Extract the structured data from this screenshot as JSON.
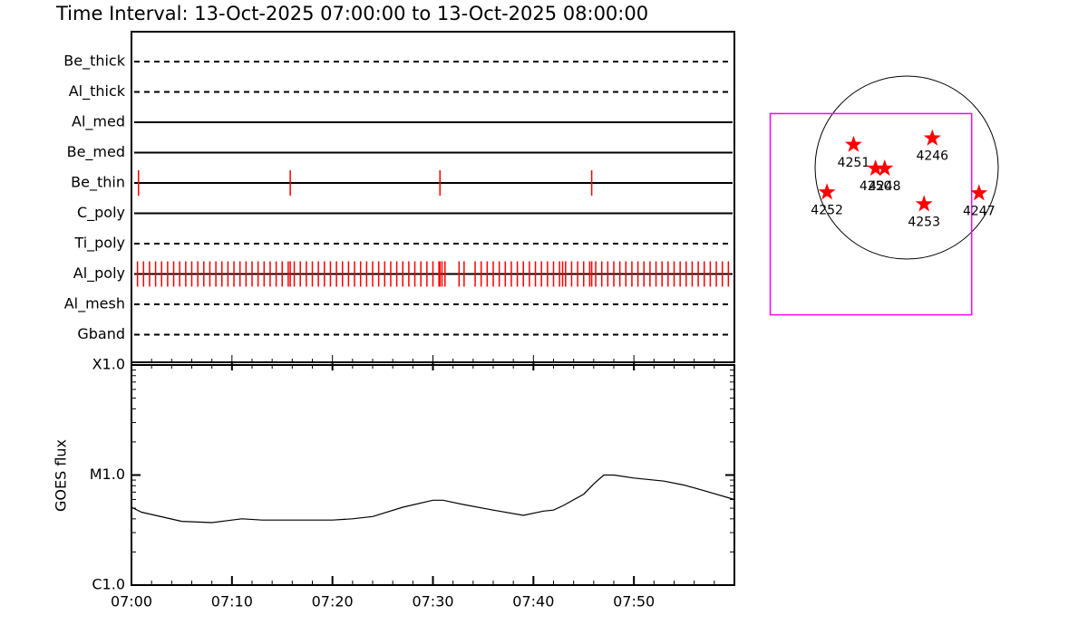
{
  "chart_data": [
    {
      "type": "timeline",
      "title": "Time Interval: 13-Oct-2025 07:00:00 to 13-Oct-2025 08:00:00",
      "categories": [
        "Be_thick",
        "Al_thick",
        "Al_med",
        "Be_med",
        "Be_thin",
        "C_poly",
        "Ti_poly",
        "Al_poly",
        "Al_mesh",
        "Gband"
      ],
      "line_styles": [
        "dashed",
        "dashed",
        "solid",
        "solid",
        "solid",
        "solid",
        "dashed",
        "solid",
        "dashed",
        "dashed"
      ],
      "xlim": [
        0,
        60
      ],
      "series": [
        {
          "name": "Be_thin",
          "color": "#ff0000",
          "x": [
            0.7,
            15.8,
            30.7,
            45.8
          ]
        },
        {
          "name": "Al_poly",
          "color": "#ff0000",
          "x": [
            0.6,
            1.2,
            1.8,
            2.4,
            3.0,
            3.6,
            4.2,
            4.8,
            5.4,
            6.0,
            6.6,
            7.2,
            7.8,
            8.4,
            9.0,
            9.6,
            10.2,
            10.8,
            11.4,
            12.0,
            12.6,
            13.2,
            13.8,
            14.4,
            15.0,
            15.6,
            15.8,
            16.2,
            16.8,
            17.4,
            18.0,
            18.6,
            19.2,
            19.8,
            20.4,
            21.0,
            21.6,
            22.2,
            22.8,
            23.4,
            24.0,
            24.6,
            25.2,
            25.8,
            26.4,
            27.0,
            27.6,
            28.2,
            28.8,
            29.4,
            30.0,
            30.6,
            30.7,
            30.9,
            31.2,
            32.6,
            33.1,
            34.2,
            34.8,
            35.4,
            36.0,
            36.6,
            37.2,
            37.8,
            38.4,
            39.0,
            39.6,
            40.2,
            40.8,
            41.4,
            42.0,
            42.6,
            42.9,
            43.2,
            43.8,
            44.4,
            45.0,
            45.6,
            45.8,
            46.2,
            46.8,
            47.4,
            48.0,
            48.6,
            49.2,
            49.8,
            50.4,
            51.0,
            51.6,
            52.2,
            52.8,
            53.4,
            54.0,
            54.6,
            55.2,
            55.8,
            56.4,
            57.0,
            57.6,
            58.2,
            58.8,
            59.4
          ]
        }
      ]
    },
    {
      "type": "line",
      "ylabel": "GOES flux",
      "log": true,
      "color": "#000000",
      "x": [
        0,
        1,
        5,
        8,
        10,
        11,
        13,
        15,
        20,
        22,
        24,
        27,
        30,
        31,
        33,
        36,
        39,
        41,
        42,
        43,
        45,
        46,
        47,
        48,
        50,
        53,
        55,
        57,
        60
      ],
      "values": [
        5.1e-06,
        4.6e-06,
        3.8e-06,
        3.7e-06,
        3.9e-06,
        4e-06,
        3.9e-06,
        3.9e-06,
        3.9e-06,
        4e-06,
        4.2e-06,
        5.1e-06,
        5.9e-06,
        5.9e-06,
        5.4e-06,
        4.8e-06,
        4.3e-06,
        4.7e-06,
        4.8e-06,
        5.3e-06,
        6.7e-06,
        8.3e-06,
        1e-05,
        1e-05,
        9.4e-06,
        8.8e-06,
        8.1e-06,
        7.2e-06,
        6e-06
      ],
      "xlim": [
        0,
        60
      ],
      "xticks": [
        {
          "value": 0,
          "label": "07:00"
        },
        {
          "value": 10,
          "label": "07:10"
        },
        {
          "value": 20,
          "label": "07:20"
        },
        {
          "value": 30,
          "label": "07:30"
        },
        {
          "value": 40,
          "label": "07:40"
        },
        {
          "value": 50,
          "label": "07:50"
        }
      ],
      "ylim": [
        1e-06,
        0.0001
      ],
      "yticks": [
        {
          "value": 1e-06,
          "label": "C1.0"
        },
        {
          "value": 1e-05,
          "label": "M1.0"
        },
        {
          "value": 0.0001,
          "label": "X1.0"
        }
      ]
    },
    {
      "type": "map",
      "limb_color": "#000000",
      "fov_color": "#ff00ff",
      "fov_x": [
        -1.49,
        0.71
      ],
      "fov_y": [
        -1.61,
        0.59
      ],
      "series": [
        {
          "color": "#ff0000",
          "labels": [
            "4251",
            "4250",
            "4248",
            "4246",
            "4252",
            "4253",
            "4247"
          ],
          "x": [
            -0.58,
            -0.34,
            -0.24,
            0.28,
            -0.87,
            0.19,
            0.79
          ],
          "values": [
            0.25,
            -0.01,
            -0.01,
            0.32,
            -0.27,
            -0.4,
            -0.28
          ]
        }
      ]
    }
  ]
}
